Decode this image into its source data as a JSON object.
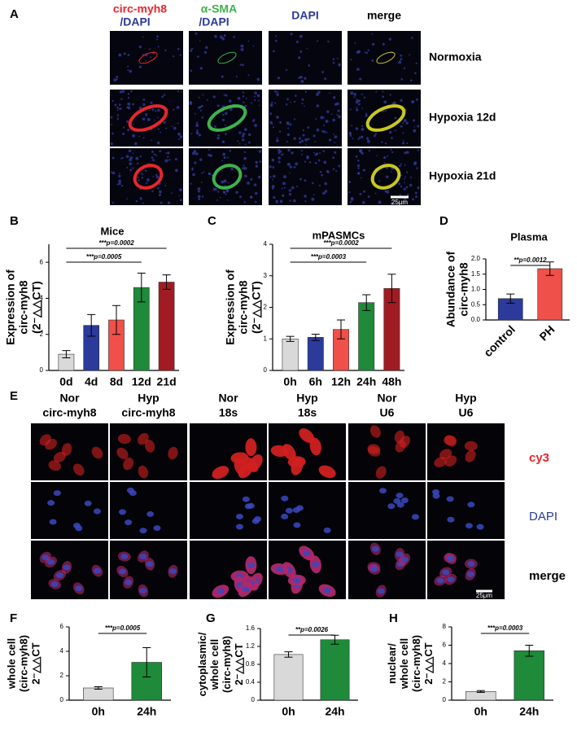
{
  "panel_a": {
    "letter": "A",
    "headers": [
      [
        "circ-myh8",
        "/DAPI"
      ],
      [
        "α-SMA",
        "/DAPI"
      ],
      [
        "DAPI"
      ],
      [
        "merge"
      ]
    ],
    "rows": [
      "Normoxia",
      "Hypoxia 12d",
      "Hypoxia 21d"
    ],
    "scale": "25μm"
  },
  "panel_e": {
    "letter": "E",
    "headers": [
      [
        "Nor",
        "circ-myh8"
      ],
      [
        "Hyp",
        "circ-myh8"
      ],
      [
        "Nor",
        "18s"
      ],
      [
        "Hyp",
        "18s"
      ],
      [
        "Nor",
        "U6"
      ],
      [
        "Hyp",
        "U6"
      ]
    ],
    "rows": [
      "cy3",
      "DAPI",
      "merge"
    ],
    "scale": "25μm"
  },
  "chart_data": [
    {
      "type": "bar",
      "panel": "B",
      "title": "Mice",
      "y_label": [
        "Expression of",
        "circ-myh8",
        "(2⁻△△CT)"
      ],
      "categories": [
        "0d",
        "4d",
        "8d",
        "12d",
        "21d"
      ],
      "values": [
        0.9,
        2.5,
        2.8,
        4.6,
        4.9
      ],
      "errors": [
        0.2,
        0.6,
        0.8,
        0.8,
        0.4
      ],
      "colors": [
        "#d9d9d9",
        "#2b3a9b",
        "#f0504a",
        "#1e8a3a",
        "#a01c22"
      ],
      "ylim": [
        0,
        7
      ],
      "yticks": [
        0,
        2,
        4,
        6
      ],
      "annotations": [
        "***p=0.0005",
        "***p=0.0002"
      ]
    },
    {
      "type": "bar",
      "panel": "C",
      "title": "mPASMCs",
      "y_label": [
        "Expression of",
        "circ-myh8",
        "(2⁻△△CT)"
      ],
      "categories": [
        "0h",
        "6h",
        "12h",
        "24h",
        "48h"
      ],
      "values": [
        1.0,
        1.05,
        1.3,
        2.15,
        2.6
      ],
      "errors": [
        0.08,
        0.1,
        0.3,
        0.25,
        0.45
      ],
      "colors": [
        "#d9d9d9",
        "#2b3a9b",
        "#f0504a",
        "#1e8a3a",
        "#a01c22"
      ],
      "ylim": [
        0,
        4
      ],
      "yticks": [
        0,
        1,
        2,
        3,
        4
      ],
      "annotations": [
        "***p=0.0003",
        "***p=0.0002"
      ]
    },
    {
      "type": "bar",
      "panel": "D",
      "title": "Plasma",
      "y_label": [
        "Abundance of",
        "circ-myh8"
      ],
      "categories": [
        "control",
        "PH"
      ],
      "values": [
        0.7,
        1.68
      ],
      "errors": [
        0.15,
        0.22
      ],
      "colors": [
        "#2b3a9b",
        "#f0504a"
      ],
      "ylim": [
        0,
        2
      ],
      "yticks": [
        {
          "value": 0,
          "label": "0.0"
        },
        0.5,
        {
          "value": 1,
          "label": "1.0"
        },
        1.5,
        {
          "value": 2,
          "label": "2.0"
        }
      ],
      "annotations": [
        "**p=0.0012"
      ]
    },
    {
      "type": "bar",
      "panel": "F",
      "y_label": [
        "whole cell",
        "(circ-myh8)",
        "2⁻△△CT"
      ],
      "categories": [
        "0h",
        "24h"
      ],
      "values": [
        1.0,
        3.1
      ],
      "errors": [
        0.1,
        1.2
      ],
      "colors": [
        "#d9d9d9",
        "#1e8a3a"
      ],
      "ylim": [
        0,
        6
      ],
      "yticks": [
        0,
        2,
        4,
        6
      ],
      "annotations": [
        "***p=0.0005"
      ]
    },
    {
      "type": "bar",
      "panel": "G",
      "y_label": [
        "cytoplasmic/",
        "whole cell",
        "(circ-myh8)",
        "2⁻△△CT"
      ],
      "categories": [
        "0h",
        "24h"
      ],
      "values": [
        1.02,
        1.35
      ],
      "errors": [
        0.06,
        0.1
      ],
      "colors": [
        "#d9d9d9",
        "#1e8a3a"
      ],
      "ylim": [
        0,
        1.6
      ],
      "yticks": [
        0,
        0.4,
        0.8,
        1.2,
        1.6
      ],
      "annotations": [
        "**p=0.0026"
      ]
    },
    {
      "type": "bar",
      "panel": "H",
      "y_label": [
        "nuclear/",
        "whole cell",
        "(circ-myh8)",
        "2⁻△△CT"
      ],
      "categories": [
        "0h",
        "24h"
      ],
      "values": [
        0.95,
        5.4
      ],
      "errors": [
        0.1,
        0.6
      ],
      "colors": [
        "#d9d9d9",
        "#1e8a3a"
      ],
      "ylim": [
        0,
        8
      ],
      "yticks": [
        0,
        2,
        4,
        6,
        8
      ],
      "annotations": [
        "***p=0.0003"
      ]
    }
  ]
}
